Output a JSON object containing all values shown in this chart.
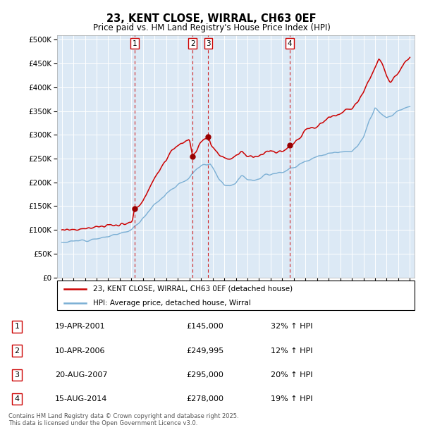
{
  "title": "23, KENT CLOSE, WIRRAL, CH63 0EF",
  "subtitle": "Price paid vs. HM Land Registry's House Price Index (HPI)",
  "plot_bg_color": "#dce9f5",
  "red_color": "#cc0000",
  "blue_color": "#7bafd4",
  "ylim": [
    0,
    510000
  ],
  "yticks": [
    0,
    50000,
    100000,
    150000,
    200000,
    250000,
    300000,
    350000,
    400000,
    450000,
    500000
  ],
  "xlim_left": 1994.6,
  "xlim_right": 2025.4,
  "purchases": [
    {
      "num": 1,
      "date": "19-APR-2001",
      "price": 145000,
      "pct": "32%",
      "dir": "↑",
      "year": 2001.28
    },
    {
      "num": 2,
      "date": "10-APR-2006",
      "price": 249995,
      "pct": "12%",
      "dir": "↑",
      "year": 2006.28
    },
    {
      "num": 3,
      "date": "20-AUG-2007",
      "price": 295000,
      "pct": "20%",
      "dir": "↑",
      "year": 2007.63
    },
    {
      "num": 4,
      "date": "15-AUG-2014",
      "price": 278000,
      "pct": "19%",
      "dir": "↑",
      "year": 2014.63
    }
  ],
  "legend_label_red": "23, KENT CLOSE, WIRRAL, CH63 0EF (detached house)",
  "legend_label_blue": "HPI: Average price, detached house, Wirral",
  "footer": "Contains HM Land Registry data © Crown copyright and database right 2025.\nThis data is licensed under the Open Government Licence v3.0."
}
